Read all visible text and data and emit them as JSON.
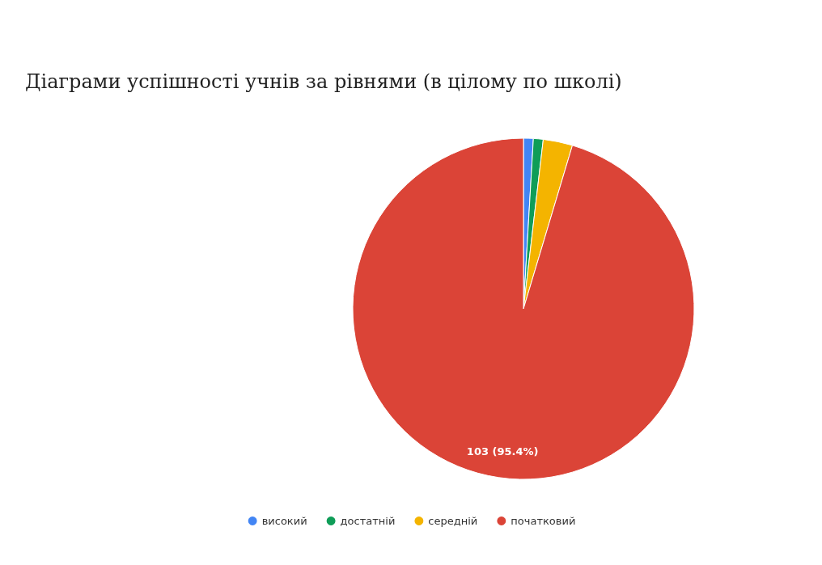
{
  "chart_data": {
    "type": "pie",
    "title": "Діаграми успішності учнів за рівнями (в цілому по школі)",
    "categories": [
      "високий",
      "достатній",
      "середній",
      "початковий"
    ],
    "values": [
      1,
      1,
      3,
      103
    ],
    "colors": [
      "#4285f4",
      "#0f9d58",
      "#f4b400",
      "#db4437"
    ],
    "value_labels": [
      null,
      null,
      null,
      "103 (95.4%)"
    ],
    "legend": "bottom"
  }
}
